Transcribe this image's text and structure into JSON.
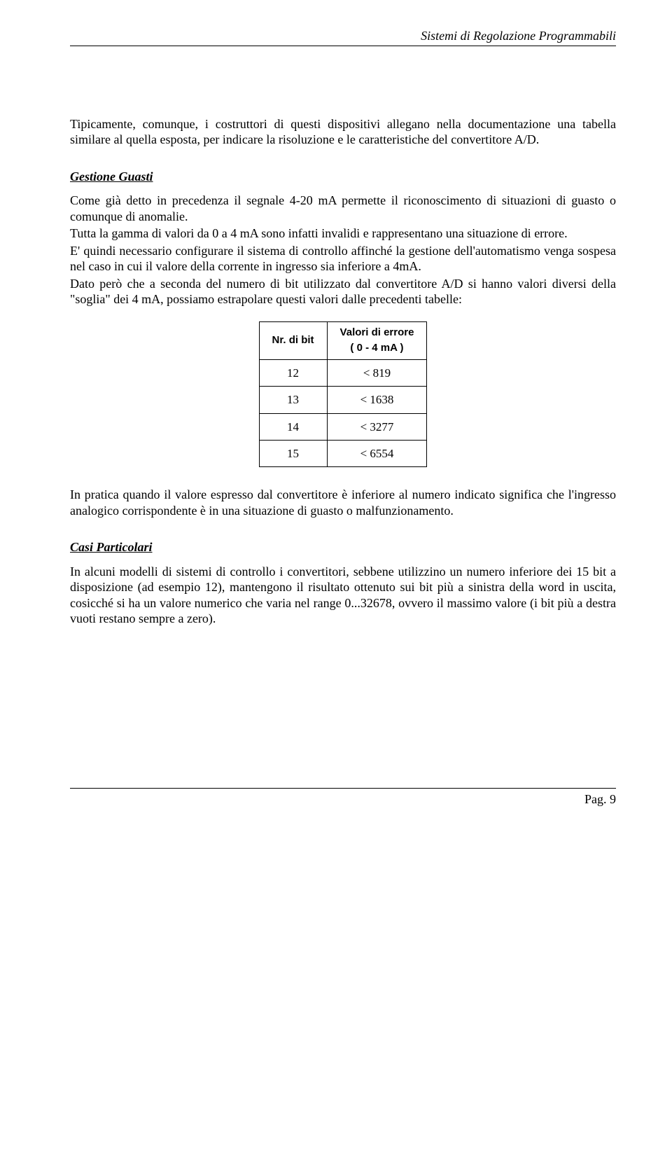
{
  "header": {
    "title": "Sistemi di Regolazione Programmabili"
  },
  "paragraphs": {
    "p1": "Tipicamente, comunque, i costruttori di questi dispositivi allegano nella documentazione una tabella similare al quella esposta, per indicare la risoluzione e le caratteristiche del convertitore A/D."
  },
  "section1": {
    "title": "Gestione Guasti",
    "p1": "Come già detto in precedenza il segnale 4-20 mA permette il riconoscimento di situazioni di guasto o comunque di anomalie.",
    "p2": "Tutta la gamma di valori da 0 a 4 mA sono infatti invalidi e rappresentano una situazione di errore.",
    "p3": "E' quindi necessario configurare il sistema di controllo affinché la gestione dell'automatismo venga sospesa nel caso in cui il valore della corrente in ingresso sia inferiore a 4mA.",
    "p4": "Dato però che a seconda del numero di bit utilizzato dal convertitore A/D si hanno valori diversi della \"soglia\" dei 4 mA, possiamo estrapolare questi valori dalle precedenti tabelle:"
  },
  "table": {
    "col1_header": "Nr. di bit",
    "col2_header_line1": "Valori di errore",
    "col2_header_line2": "( 0 - 4 mA )",
    "rows": [
      {
        "bits": "12",
        "val": "<  819"
      },
      {
        "bits": "13",
        "val": "< 1638"
      },
      {
        "bits": "14",
        "val": "< 3277"
      },
      {
        "bits": "15",
        "val": "< 6554"
      }
    ]
  },
  "para_after_table": "In pratica quando il valore espresso dal convertitore è inferiore al numero indicato significa che l'ingresso analogico corrispondente è in una situazione di guasto o malfunzionamento.",
  "section2": {
    "title": "Casi Particolari",
    "p1": "In alcuni modelli di sistemi di controllo i convertitori, sebbene utilizzino un numero inferiore dei 15 bit a disposizione (ad esempio 12), mantengono il risultato ottenuto sui bit più a sinistra della word in uscita, cosicché si ha un valore numerico che varia nel range 0...32678, ovvero il massimo valore (i bit più a destra vuoti restano sempre a zero)."
  },
  "footer": {
    "page": "Pag. 9"
  }
}
